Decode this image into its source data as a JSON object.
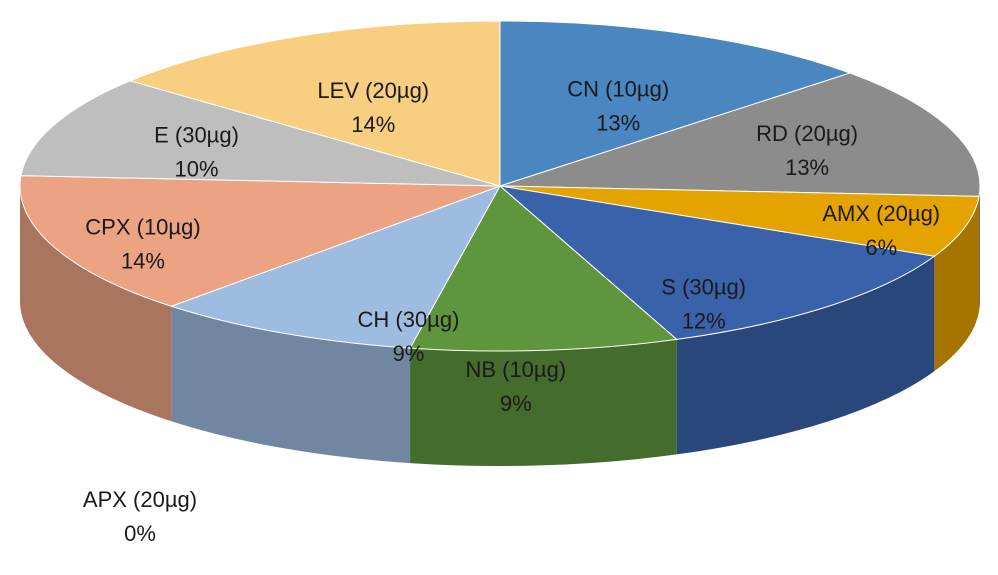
{
  "chart_data": {
    "type": "pie",
    "style": "3d",
    "categories": [
      "CN (10µg)",
      "RD (20µg)",
      "AMX (20µg)",
      "S (30µg)",
      "NB (10µg)",
      "CH (30µg)",
      "APX (20µg)",
      "CPX (10µg)",
      "E (30µg)",
      "LEV (20µg)"
    ],
    "values": [
      13,
      13,
      6,
      12,
      9,
      9,
      0,
      14,
      10,
      14
    ],
    "value_labels": [
      "13%",
      "13%",
      "6%",
      "12%",
      "9%",
      "9%",
      "0%",
      "14%",
      "10%",
      "14%"
    ],
    "colors": [
      "#4a86c0",
      "#8c8c8c",
      "#e5a300",
      "#3a62ab",
      "#5f963d",
      "#9dbce0",
      "#6b8fc7",
      "#eba383",
      "#bebebe",
      "#f8cf80"
    ],
    "title": "",
    "legend": "none"
  }
}
